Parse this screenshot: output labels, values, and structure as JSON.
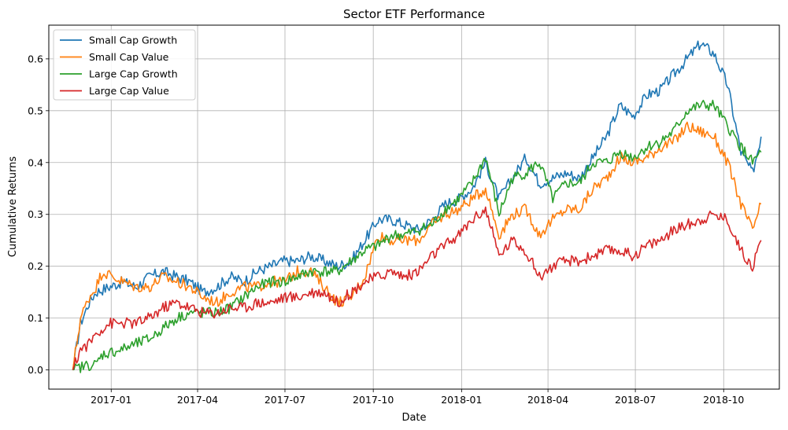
{
  "chart_data": {
    "type": "line",
    "title": "Sector ETF Performance",
    "xlabel": "Date",
    "ylabel": "Cumulative Returns",
    "x_tick_labels": [
      "2017-01",
      "2017-04",
      "2017-07",
      "2017-10",
      "2018-01",
      "2018-04",
      "2018-07",
      "2018-10"
    ],
    "y_ticks": [
      0.0,
      0.1,
      0.2,
      0.3,
      0.4,
      0.5,
      0.6
    ],
    "y_tick_labels": [
      "0.0",
      "0.1",
      "0.2",
      "0.3",
      "0.4",
      "0.5",
      "0.6"
    ],
    "xlim": [
      "2016-10-28",
      "2018-11-28"
    ],
    "ylim": [
      -0.037,
      0.665
    ],
    "grid": true,
    "legend_position": "upper left",
    "series": [
      {
        "name": "Small Cap Growth",
        "color": "#1f77b4",
        "points": [
          [
            "2016-11-22",
            0.0
          ],
          [
            "2016-11-30",
            0.09
          ],
          [
            "2016-12-09",
            0.13
          ],
          [
            "2016-12-16",
            0.15
          ],
          [
            "2016-12-30",
            0.16
          ],
          [
            "2017-01-13",
            0.17
          ],
          [
            "2017-01-27",
            0.16
          ],
          [
            "2017-02-10",
            0.18
          ],
          [
            "2017-02-24",
            0.19
          ],
          [
            "2017-03-10",
            0.18
          ],
          [
            "2017-03-24",
            0.17
          ],
          [
            "2017-04-07",
            0.15
          ],
          [
            "2017-04-21",
            0.16
          ],
          [
            "2017-05-05",
            0.18
          ],
          [
            "2017-05-19",
            0.17
          ],
          [
            "2017-06-02",
            0.19
          ],
          [
            "2017-06-16",
            0.2
          ],
          [
            "2017-06-30",
            0.21
          ],
          [
            "2017-07-14",
            0.21
          ],
          [
            "2017-07-28",
            0.22
          ],
          [
            "2017-08-11",
            0.21
          ],
          [
            "2017-08-25",
            0.2
          ],
          [
            "2017-09-08",
            0.21
          ],
          [
            "2017-09-22",
            0.25
          ],
          [
            "2017-10-06",
            0.29
          ],
          [
            "2017-10-20",
            0.29
          ],
          [
            "2017-11-03",
            0.28
          ],
          [
            "2017-11-17",
            0.27
          ],
          [
            "2017-12-01",
            0.29
          ],
          [
            "2017-12-15",
            0.32
          ],
          [
            "2017-12-29",
            0.33
          ],
          [
            "2018-01-12",
            0.35
          ],
          [
            "2018-01-26",
            0.4
          ],
          [
            "2018-02-09",
            0.33
          ],
          [
            "2018-02-23",
            0.37
          ],
          [
            "2018-03-09",
            0.41
          ],
          [
            "2018-03-23",
            0.36
          ],
          [
            "2018-04-06",
            0.37
          ],
          [
            "2018-04-20",
            0.38
          ],
          [
            "2018-05-04",
            0.37
          ],
          [
            "2018-05-18",
            0.41
          ],
          [
            "2018-06-01",
            0.45
          ],
          [
            "2018-06-15",
            0.51
          ],
          [
            "2018-06-29",
            0.49
          ],
          [
            "2018-07-13",
            0.53
          ],
          [
            "2018-07-27",
            0.54
          ],
          [
            "2018-08-10",
            0.57
          ],
          [
            "2018-08-24",
            0.6
          ],
          [
            "2018-09-07",
            0.63
          ],
          [
            "2018-09-21",
            0.61
          ],
          [
            "2018-10-05",
            0.55
          ],
          [
            "2018-10-19",
            0.42
          ],
          [
            "2018-10-31",
            0.38
          ],
          [
            "2018-11-09",
            0.45
          ]
        ]
      },
      {
        "name": "Small Cap Value",
        "color": "#ff7f0e",
        "points": [
          [
            "2016-11-22",
            0.0
          ],
          [
            "2016-11-30",
            0.1
          ],
          [
            "2016-12-09",
            0.14
          ],
          [
            "2016-12-16",
            0.16
          ],
          [
            "2016-12-23",
            0.19
          ],
          [
            "2017-01-13",
            0.17
          ],
          [
            "2017-01-27",
            0.16
          ],
          [
            "2017-02-10",
            0.16
          ],
          [
            "2017-02-24",
            0.18
          ],
          [
            "2017-03-10",
            0.17
          ],
          [
            "2017-03-24",
            0.16
          ],
          [
            "2017-04-07",
            0.14
          ],
          [
            "2017-04-21",
            0.13
          ],
          [
            "2017-05-05",
            0.15
          ],
          [
            "2017-05-19",
            0.16
          ],
          [
            "2017-06-02",
            0.16
          ],
          [
            "2017-06-16",
            0.17
          ],
          [
            "2017-06-30",
            0.17
          ],
          [
            "2017-07-14",
            0.19
          ],
          [
            "2017-07-28",
            0.19
          ],
          [
            "2017-08-11",
            0.16
          ],
          [
            "2017-08-25",
            0.13
          ],
          [
            "2017-09-08",
            0.14
          ],
          [
            "2017-09-22",
            0.18
          ],
          [
            "2017-10-06",
            0.26
          ],
          [
            "2017-10-20",
            0.25
          ],
          [
            "2017-11-03",
            0.25
          ],
          [
            "2017-11-17",
            0.25
          ],
          [
            "2017-12-01",
            0.28
          ],
          [
            "2017-12-15",
            0.3
          ],
          [
            "2017-12-29",
            0.31
          ],
          [
            "2018-01-12",
            0.33
          ],
          [
            "2018-01-26",
            0.35
          ],
          [
            "2018-02-09",
            0.26
          ],
          [
            "2018-02-23",
            0.3
          ],
          [
            "2018-03-09",
            0.31
          ],
          [
            "2018-03-23",
            0.26
          ],
          [
            "2018-04-06",
            0.29
          ],
          [
            "2018-04-20",
            0.31
          ],
          [
            "2018-05-04",
            0.31
          ],
          [
            "2018-05-18",
            0.35
          ],
          [
            "2018-06-01",
            0.37
          ],
          [
            "2018-06-15",
            0.41
          ],
          [
            "2018-06-29",
            0.4
          ],
          [
            "2018-07-13",
            0.41
          ],
          [
            "2018-07-27",
            0.43
          ],
          [
            "2018-08-10",
            0.44
          ],
          [
            "2018-08-24",
            0.47
          ],
          [
            "2018-09-07",
            0.46
          ],
          [
            "2018-09-21",
            0.45
          ],
          [
            "2018-10-05",
            0.4
          ],
          [
            "2018-10-19",
            0.32
          ],
          [
            "2018-10-31",
            0.27
          ],
          [
            "2018-11-09",
            0.32
          ]
        ]
      },
      {
        "name": "Large Cap Growth",
        "color": "#2ca02c",
        "points": [
          [
            "2016-11-22",
            0.0
          ],
          [
            "2016-11-30",
            0.005
          ],
          [
            "2016-12-09",
            0.01
          ],
          [
            "2016-12-16",
            0.01
          ],
          [
            "2016-12-23",
            0.03
          ],
          [
            "2017-01-13",
            0.04
          ],
          [
            "2017-01-27",
            0.05
          ],
          [
            "2017-02-10",
            0.06
          ],
          [
            "2017-02-24",
            0.08
          ],
          [
            "2017-03-10",
            0.1
          ],
          [
            "2017-03-24",
            0.11
          ],
          [
            "2017-04-07",
            0.11
          ],
          [
            "2017-04-21",
            0.11
          ],
          [
            "2017-05-05",
            0.12
          ],
          [
            "2017-05-19",
            0.14
          ],
          [
            "2017-06-02",
            0.16
          ],
          [
            "2017-06-16",
            0.17
          ],
          [
            "2017-06-30",
            0.17
          ],
          [
            "2017-07-14",
            0.18
          ],
          [
            "2017-07-28",
            0.19
          ],
          [
            "2017-08-11",
            0.19
          ],
          [
            "2017-08-25",
            0.19
          ],
          [
            "2017-09-08",
            0.21
          ],
          [
            "2017-09-22",
            0.23
          ],
          [
            "2017-10-06",
            0.24
          ],
          [
            "2017-10-20",
            0.26
          ],
          [
            "2017-11-03",
            0.26
          ],
          [
            "2017-11-17",
            0.27
          ],
          [
            "2017-12-01",
            0.28
          ],
          [
            "2017-12-15",
            0.31
          ],
          [
            "2017-12-29",
            0.33
          ],
          [
            "2018-01-12",
            0.36
          ],
          [
            "2018-01-26",
            0.41
          ],
          [
            "2018-02-09",
            0.3
          ],
          [
            "2018-02-23",
            0.37
          ],
          [
            "2018-03-09",
            0.38
          ],
          [
            "2018-03-23",
            0.4
          ],
          [
            "2018-04-06",
            0.33
          ],
          [
            "2018-04-20",
            0.36
          ],
          [
            "2018-05-04",
            0.36
          ],
          [
            "2018-05-18",
            0.4
          ],
          [
            "2018-06-01",
            0.4
          ],
          [
            "2018-06-15",
            0.42
          ],
          [
            "2018-06-29",
            0.41
          ],
          [
            "2018-07-13",
            0.43
          ],
          [
            "2018-07-27",
            0.44
          ],
          [
            "2018-08-10",
            0.46
          ],
          [
            "2018-08-24",
            0.5
          ],
          [
            "2018-09-07",
            0.51
          ],
          [
            "2018-09-21",
            0.51
          ],
          [
            "2018-10-05",
            0.47
          ],
          [
            "2018-10-19",
            0.43
          ],
          [
            "2018-10-31",
            0.4
          ],
          [
            "2018-11-09",
            0.42
          ]
        ]
      },
      {
        "name": "Large Cap Value",
        "color": "#d62728",
        "points": [
          [
            "2016-11-22",
            0.0
          ],
          [
            "2016-11-30",
            0.04
          ],
          [
            "2016-12-09",
            0.05
          ],
          [
            "2016-12-16",
            0.07
          ],
          [
            "2016-12-30",
            0.09
          ],
          [
            "2017-01-13",
            0.09
          ],
          [
            "2017-01-27",
            0.09
          ],
          [
            "2017-02-10",
            0.1
          ],
          [
            "2017-02-24",
            0.12
          ],
          [
            "2017-03-10",
            0.13
          ],
          [
            "2017-03-24",
            0.12
          ],
          [
            "2017-04-07",
            0.11
          ],
          [
            "2017-04-21",
            0.11
          ],
          [
            "2017-05-05",
            0.12
          ],
          [
            "2017-05-19",
            0.12
          ],
          [
            "2017-06-02",
            0.13
          ],
          [
            "2017-06-16",
            0.13
          ],
          [
            "2017-06-30",
            0.14
          ],
          [
            "2017-07-14",
            0.14
          ],
          [
            "2017-07-28",
            0.15
          ],
          [
            "2017-08-11",
            0.15
          ],
          [
            "2017-08-25",
            0.13
          ],
          [
            "2017-09-08",
            0.15
          ],
          [
            "2017-09-22",
            0.17
          ],
          [
            "2017-10-06",
            0.18
          ],
          [
            "2017-10-20",
            0.19
          ],
          [
            "2017-11-03",
            0.18
          ],
          [
            "2017-11-17",
            0.19
          ],
          [
            "2017-12-01",
            0.22
          ],
          [
            "2017-12-15",
            0.24
          ],
          [
            "2017-12-29",
            0.26
          ],
          [
            "2018-01-12",
            0.29
          ],
          [
            "2018-01-26",
            0.31
          ],
          [
            "2018-02-09",
            0.22
          ],
          [
            "2018-02-23",
            0.25
          ],
          [
            "2018-03-09",
            0.23
          ],
          [
            "2018-03-23",
            0.18
          ],
          [
            "2018-04-06",
            0.2
          ],
          [
            "2018-04-20",
            0.21
          ],
          [
            "2018-05-04",
            0.21
          ],
          [
            "2018-05-18",
            0.22
          ],
          [
            "2018-06-01",
            0.23
          ],
          [
            "2018-06-15",
            0.23
          ],
          [
            "2018-06-29",
            0.22
          ],
          [
            "2018-07-13",
            0.24
          ],
          [
            "2018-07-27",
            0.25
          ],
          [
            "2018-08-10",
            0.27
          ],
          [
            "2018-08-24",
            0.28
          ],
          [
            "2018-09-07",
            0.29
          ],
          [
            "2018-09-21",
            0.3
          ],
          [
            "2018-10-05",
            0.29
          ],
          [
            "2018-10-19",
            0.23
          ],
          [
            "2018-10-31",
            0.2
          ],
          [
            "2018-11-09",
            0.25
          ]
        ]
      }
    ]
  }
}
